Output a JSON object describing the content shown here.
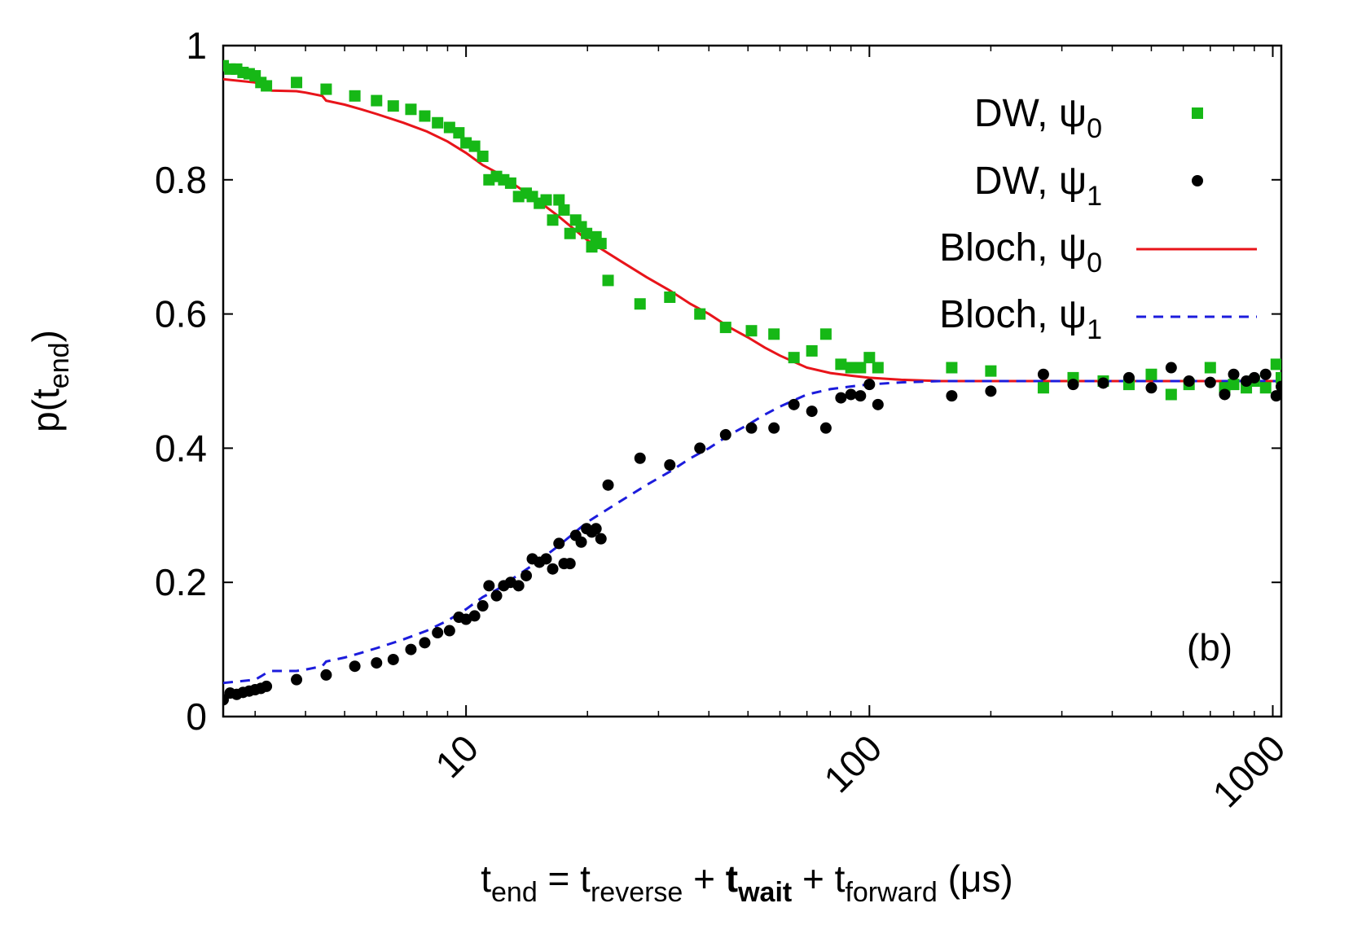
{
  "chart_data": {
    "type": "scatter",
    "panel_label": "(b)",
    "x_scale": "log",
    "xlim": [
      2.5,
      1050
    ],
    "ylim": [
      0,
      1
    ],
    "grid": false,
    "legend_position": "top-right",
    "xticks": [
      {
        "value": 10,
        "label": "10"
      },
      {
        "value": 100,
        "label": "100"
      },
      {
        "value": 1000,
        "label": "1000"
      }
    ],
    "yticks": [
      {
        "value": 0,
        "label": "0"
      },
      {
        "value": 0.2,
        "label": "0.2"
      },
      {
        "value": 0.4,
        "label": "0.4"
      },
      {
        "value": 0.6,
        "label": "0.6"
      },
      {
        "value": 0.8,
        "label": "0.8"
      },
      {
        "value": 1,
        "label": "1"
      }
    ],
    "xlabel": {
      "t": "t",
      "end": "end",
      "eq": " = t",
      "reverse": "reverse",
      "plus1": " + ",
      "tw": "t",
      "wait": "wait",
      "plus2": " + t",
      "forward": "forward",
      "unit": " (μs)"
    },
    "ylabel": {
      "p": "p(t",
      "end": "end",
      "close": ")"
    },
    "colors": {
      "dw0": "#16b816",
      "dw1": "#000000",
      "bloch0": "#e8141a",
      "bloch1": "#1c1cdc"
    },
    "series": [
      {
        "name": "DW, ψ",
        "sub": "0",
        "style": "square",
        "color": "#16b816",
        "x": [
          2.5,
          2.6,
          2.7,
          2.8,
          2.9,
          3.0,
          3.1,
          3.2,
          3.8,
          4.5,
          5.3,
          6.0,
          6.6,
          7.3,
          7.9,
          8.5,
          9.1,
          9.6,
          10.0,
          10.5,
          11.0,
          11.4,
          11.9,
          12.4,
          12.9,
          13.5,
          14.1,
          14.6,
          15.2,
          15.8,
          16.4,
          17.0,
          17.5,
          18.1,
          18.7,
          19.3,
          19.9,
          20.5,
          21.0,
          21.6,
          22.5,
          27.0,
          32.0,
          38.0,
          44.0,
          51.0,
          58.0,
          65.0,
          72.0,
          78.0,
          85.0,
          90.0,
          95.0,
          100.0,
          105.0,
          160.0,
          200.0,
          270.0,
          320.0,
          380.0,
          440.0,
          500.0,
          560.0,
          620.0,
          700.0,
          760.0,
          800.0,
          860.0,
          900.0,
          960.0,
          1020.0,
          1050.0
        ],
        "y": [
          0.97,
          0.965,
          0.965,
          0.96,
          0.958,
          0.955,
          0.945,
          0.94,
          0.945,
          0.935,
          0.925,
          0.918,
          0.91,
          0.905,
          0.895,
          0.885,
          0.878,
          0.87,
          0.855,
          0.85,
          0.835,
          0.8,
          0.805,
          0.8,
          0.795,
          0.775,
          0.78,
          0.775,
          0.765,
          0.77,
          0.74,
          0.77,
          0.755,
          0.72,
          0.74,
          0.73,
          0.72,
          0.7,
          0.715,
          0.705,
          0.65,
          0.615,
          0.625,
          0.6,
          0.58,
          0.575,
          0.57,
          0.535,
          0.545,
          0.57,
          0.525,
          0.52,
          0.52,
          0.535,
          0.52,
          0.52,
          0.515,
          0.49,
          0.505,
          0.5,
          0.495,
          0.51,
          0.48,
          0.495,
          0.52,
          0.49,
          0.495,
          0.49,
          0.5,
          0.49,
          0.525,
          0.505
        ]
      },
      {
        "name": "DW, ψ",
        "sub": "1",
        "style": "circle",
        "color": "#000000",
        "x": [
          2.5,
          2.6,
          2.7,
          2.8,
          2.9,
          3.0,
          3.1,
          3.2,
          3.8,
          4.5,
          5.3,
          6.0,
          6.6,
          7.3,
          7.9,
          8.5,
          9.1,
          9.6,
          10.0,
          10.5,
          11.0,
          11.4,
          11.9,
          12.4,
          12.9,
          13.5,
          14.1,
          14.6,
          15.2,
          15.8,
          16.4,
          17.0,
          17.5,
          18.1,
          18.7,
          19.3,
          19.9,
          20.5,
          21.0,
          21.6,
          22.5,
          27.0,
          32.0,
          38.0,
          44.0,
          51.0,
          58.0,
          65.0,
          72.0,
          78.0,
          85.0,
          90.0,
          95.0,
          100.0,
          105.0,
          160.0,
          200.0,
          270.0,
          320.0,
          380.0,
          440.0,
          500.0,
          560.0,
          620.0,
          700.0,
          760.0,
          800.0,
          860.0,
          900.0,
          960.0,
          1020.0,
          1050.0
        ],
        "y": [
          0.025,
          0.035,
          0.033,
          0.036,
          0.038,
          0.04,
          0.042,
          0.045,
          0.055,
          0.062,
          0.075,
          0.08,
          0.085,
          0.1,
          0.11,
          0.125,
          0.128,
          0.148,
          0.145,
          0.15,
          0.165,
          0.195,
          0.18,
          0.195,
          0.2,
          0.195,
          0.21,
          0.235,
          0.23,
          0.235,
          0.22,
          0.258,
          0.228,
          0.228,
          0.27,
          0.26,
          0.28,
          0.275,
          0.28,
          0.265,
          0.345,
          0.385,
          0.375,
          0.4,
          0.42,
          0.43,
          0.43,
          0.465,
          0.455,
          0.43,
          0.475,
          0.48,
          0.478,
          0.495,
          0.465,
          0.478,
          0.485,
          0.51,
          0.495,
          0.497,
          0.505,
          0.49,
          0.52,
          0.5,
          0.498,
          0.48,
          0.51,
          0.5,
          0.505,
          0.51,
          0.478,
          0.492
        ]
      },
      {
        "name": "Bloch, ψ",
        "sub": "0",
        "style": "solid",
        "color": "#e8141a",
        "x": [
          2.5,
          3.0,
          3.1,
          3.2,
          3.3,
          3.8,
          4.0,
          4.4,
          4.5,
          5.0,
          5.5,
          6.0,
          7.0,
          8.0,
          9.0,
          10.0,
          11.0,
          12.0,
          13.0,
          15.0,
          17.0,
          20.0,
          24.0,
          28.0,
          32.0,
          36.0,
          40.0,
          45.0,
          50.0,
          55.0,
          60.0,
          70.0,
          80.0,
          90.0,
          100.0,
          120.0,
          150.0,
          200.0,
          300.0,
          500.0,
          1050.0
        ],
        "y": [
          0.95,
          0.945,
          0.94,
          0.935,
          0.933,
          0.932,
          0.93,
          0.925,
          0.918,
          0.912,
          0.905,
          0.898,
          0.885,
          0.872,
          0.857,
          0.84,
          0.822,
          0.81,
          0.795,
          0.77,
          0.745,
          0.71,
          0.68,
          0.655,
          0.635,
          0.615,
          0.6,
          0.58,
          0.565,
          0.55,
          0.538,
          0.52,
          0.512,
          0.508,
          0.505,
          0.502,
          0.5,
          0.5,
          0.5,
          0.5,
          0.5
        ]
      },
      {
        "name": "Bloch, ψ",
        "sub": "1",
        "style": "dashed",
        "color": "#1c1cdc",
        "x": [
          2.5,
          3.0,
          3.1,
          3.2,
          3.3,
          3.8,
          4.0,
          4.4,
          4.5,
          5.0,
          5.5,
          6.0,
          7.0,
          8.0,
          9.0,
          10.0,
          11.0,
          12.0,
          13.0,
          15.0,
          17.0,
          20.0,
          24.0,
          28.0,
          32.0,
          36.0,
          40.0,
          45.0,
          50.0,
          55.0,
          60.0,
          70.0,
          80.0,
          90.0,
          100.0,
          120.0,
          150.0,
          200.0,
          300.0,
          500.0,
          1050.0
        ],
        "y": [
          0.05,
          0.055,
          0.06,
          0.065,
          0.068,
          0.068,
          0.07,
          0.075,
          0.082,
          0.088,
          0.095,
          0.102,
          0.115,
          0.128,
          0.143,
          0.16,
          0.178,
          0.19,
          0.205,
          0.23,
          0.255,
          0.29,
          0.32,
          0.345,
          0.365,
          0.385,
          0.4,
          0.42,
          0.435,
          0.45,
          0.462,
          0.48,
          0.488,
          0.492,
          0.495,
          0.498,
          0.5,
          0.5,
          0.5,
          0.5,
          0.5
        ]
      }
    ]
  }
}
